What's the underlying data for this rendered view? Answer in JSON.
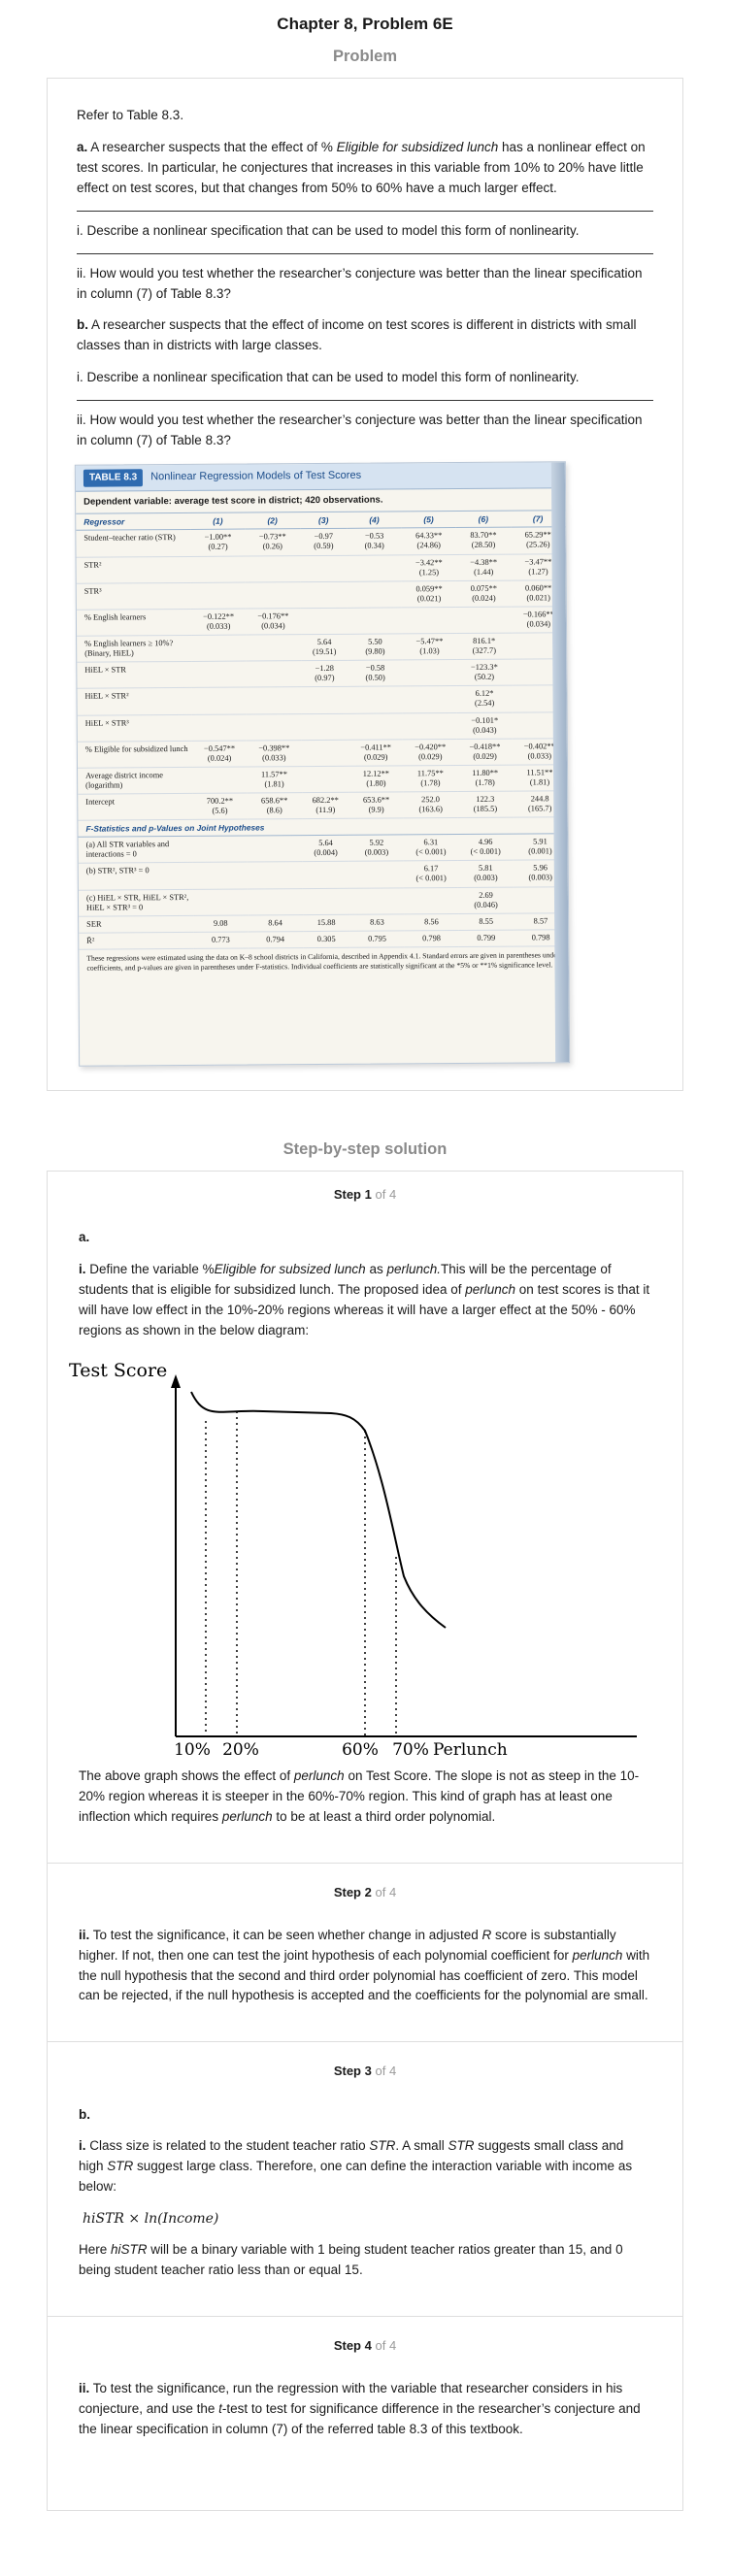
{
  "header": {
    "title": "Chapter 8, Problem 6E"
  },
  "problem": {
    "heading": "Problem",
    "intro": "Refer to Table 8.3.",
    "part_a_label": "a.",
    "part_a_text_1": " A researcher suspects that the effect of % ",
    "part_a_text_em": "Eligible for subsidized lunch",
    "part_a_text_2": " has a nonlinear effect on test scores. In particular, he conjectures that increases in this variable from 10% to 20% have little effect on test scores, but that changes from 50% to 60% have a much larger effect.",
    "a_i": "i. Describe a nonlinear specification that can be used to model this form of nonlinearity.",
    "a_ii": "ii. How would you test whether the researcher’s conjecture was better than the linear specification in column (7) of Table 8.3?",
    "part_b_label": "b.",
    "part_b_text": " A researcher suspects that the effect of income on test scores is different in districts with small classes than in districts with large classes.",
    "b_i": "i. Describe a nonlinear specification that can be used to model this form of nonlinearity.",
    "b_ii": "ii. How would you test whether the researcher’s conjecture was better than the linear specification in column (7) of Table 8.3?"
  },
  "table": {
    "badge": "TABLE 8.3",
    "title": "Nonlinear Regression Models of Test Scores",
    "subtitle": "Dependent variable: average test score in district; 420 observations.",
    "columns": [
      "Regressor",
      "(1)",
      "(2)",
      "(3)",
      "(4)",
      "(5)",
      "(6)",
      "(7)"
    ],
    "rows": [
      {
        "label": "Student–teacher ratio (STR)",
        "cells": [
          "−1.00**|(0.27)",
          "−0.73**|(0.26)",
          "−0.97|(0.59)",
          "−0.53|(0.34)",
          "64.33**|(24.86)",
          "83.70**|(28.50)",
          "65.29**|(25.26)"
        ]
      },
      {
        "label": "STR²",
        "cells": [
          "",
          "",
          "",
          "",
          "−3.42**|(1.25)",
          "−4.38**|(1.44)",
          "−3.47**|(1.27)"
        ]
      },
      {
        "label": "STR³",
        "cells": [
          "",
          "",
          "",
          "",
          "0.059**|(0.021)",
          "0.075**|(0.024)",
          "0.060**|(0.021)"
        ]
      },
      {
        "label": "% English learners",
        "cells": [
          "−0.122**|(0.033)",
          "−0.176**|(0.034)",
          "",
          "",
          "",
          "",
          "−0.166**|(0.034)"
        ]
      },
      {
        "label": "% English learners ≥ 10%? (Binary, HiEL)",
        "cells": [
          "",
          "",
          "5.64|(19.51)",
          "5.50|(9.80)",
          "−5.47**|(1.03)",
          "816.1*|(327.7)",
          ""
        ]
      },
      {
        "label": "HiEL × STR",
        "cells": [
          "",
          "",
          "−1.28|(0.97)",
          "−0.58|(0.50)",
          "",
          "−123.3*|(50.2)",
          ""
        ]
      },
      {
        "label": "HiEL × STR²",
        "cells": [
          "",
          "",
          "",
          "",
          "",
          "6.12*|(2.54)",
          ""
        ]
      },
      {
        "label": "HiEL × STR³",
        "cells": [
          "",
          "",
          "",
          "",
          "",
          "−0.101*|(0.043)",
          ""
        ]
      },
      {
        "label": "% Eligible for subsidized lunch",
        "cells": [
          "−0.547**|(0.024)",
          "−0.398**|(0.033)",
          "",
          "−0.411**|(0.029)",
          "−0.420**|(0.029)",
          "−0.418**|(0.029)",
          "−0.402**|(0.033)"
        ]
      },
      {
        "label": "Average district income (logarithm)",
        "cells": [
          "",
          "11.57**|(1.81)",
          "",
          "12.12**|(1.80)",
          "11.75**|(1.78)",
          "11.80**|(1.78)",
          "11.51**|(1.81)"
        ]
      },
      {
        "label": "Intercept",
        "cells": [
          "700.2**|(5.6)",
          "658.6**|(8.6)",
          "682.2**|(11.9)",
          "653.6**|(9.9)",
          "252.0|(163.6)",
          "122.3|(185.5)",
          "244.8|(165.7)"
        ]
      }
    ],
    "section_label": "F-Statistics and p-Values on Joint Hypotheses",
    "f_rows": [
      {
        "label": "(a) All STR variables and interactions = 0",
        "cells": [
          "",
          "",
          "5.64|(0.004)",
          "5.92|(0.003)",
          "6.31|(< 0.001)",
          "4.96|(< 0.001)",
          "5.91|(0.001)"
        ]
      },
      {
        "label": "(b) STR², STR³ = 0",
        "cells": [
          "",
          "",
          "",
          "",
          "6.17|(< 0.001)",
          "5.81|(0.003)",
          "5.96|(0.003)"
        ]
      },
      {
        "label": "(c) HiEL × STR, HiEL × STR², HiEL × STR³ = 0",
        "cells": [
          "",
          "",
          "",
          "",
          "",
          "2.69|(0.046)",
          ""
        ]
      }
    ],
    "ser": {
      "label": "SER",
      "cells": [
        "9.08",
        "8.64",
        "15.88",
        "8.63",
        "8.56",
        "8.55",
        "8.57"
      ]
    },
    "r2": {
      "label": "R̄²",
      "cells": [
        "0.773",
        "0.794",
        "0.305",
        "0.795",
        "0.798",
        "0.799",
        "0.798"
      ]
    },
    "note": "These regressions were estimated using the data on K–8 school districts in California, described in Appendix 4.1. Standard errors are given in parentheses under coefficients, and p-values are given in parentheses under F-statistics. Individual coefficients are statistically significant at the *5% or **1% significance level."
  },
  "solution": {
    "heading": "Step-by-step solution",
    "step_word": "Step",
    "of_word": "of",
    "total_steps": "4",
    "steps": [
      {
        "number": "1"
      },
      {
        "number": "2"
      },
      {
        "number": "3"
      },
      {
        "number": "4"
      }
    ],
    "step1": {
      "part_label": "a.",
      "p1_lead": "i.",
      "p1_a": " Define the variable %",
      "p1_em1": "Eligible for subsized lunch",
      "p1_b": " as ",
      "p1_em2": "perlunch.",
      "p1_c": "This will be the percentage of students that is eligible for subsidized lunch. The proposed idea of ",
      "p1_em3": "perlunch",
      "p1_d": " on test scores is that it will have low effect in the 10%-20% regions whereas it will have a larger effect at the 50% - 60% regions as shown in the below diagram:",
      "p2_a": "The above graph shows the effect of ",
      "p2_em": "perlunch",
      "p2_b": " on Test Score. The slope is not as steep in the 10-20% region whereas it is steeper in the 60%-70% region. This kind of graph has at least one inflection which requires ",
      "p2_em2": "perlunch",
      "p2_c": " to be at least a third order polynomial."
    },
    "graph": {
      "ylabel": "Test Score",
      "xlabel": "Perlunch",
      "ticks": [
        "10%",
        "20%",
        "60%",
        "70%"
      ]
    },
    "step2": {
      "lead": "ii.",
      "a": " To test the significance, it can be seen whether change in adjusted ",
      "em": "R",
      "b": " score is substantially higher. If not, then one can test the joint hypothesis of each polynomial coefficient for ",
      "em2": "perlunch",
      "c": " with the null hypothesis that the second and third order polynomial has coefficient of zero. This model can be rejected, if the null hypothesis is accepted and the coefficients for the polynomial are small."
    },
    "step3": {
      "part_label": "b.",
      "lead": "i.",
      "a": " Class size is related to the student teacher ratio ",
      "em1": "STR",
      "b": ". A small ",
      "em2": "STR",
      "c": " suggests small class and high ",
      "em3": "STR",
      "d": " suggest large class. Therefore, one can define the interaction variable with income as below:",
      "formula": "hiSTR × ln(Income)",
      "e": "Here ",
      "em4": "hiSTR",
      "f": " will be a binary variable with 1 being student teacher ratios greater than 15, and 0 being student teacher ratio less than or equal 15."
    },
    "step4": {
      "lead": "ii.",
      "a": " To test the significance, run the regression with the variable that researcher considers in his conjecture, and use the ",
      "em": "t",
      "b": "-test to test for significance difference in the researcher’s conjecture and the linear specification in column (7) of the referred table 8.3 of this textbook."
    }
  }
}
